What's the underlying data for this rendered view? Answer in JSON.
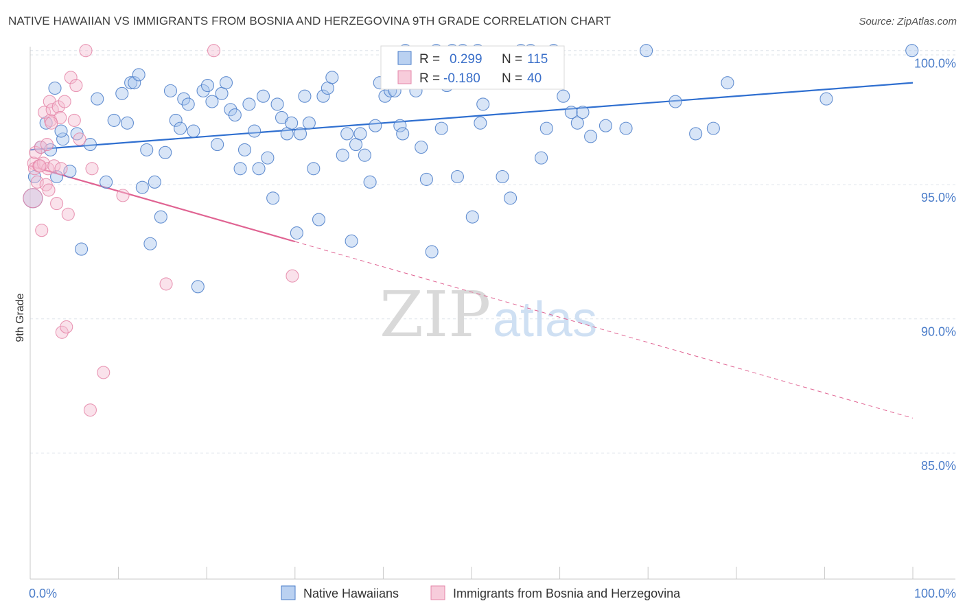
{
  "title": "NATIVE HAWAIIAN VS IMMIGRANTS FROM BOSNIA AND HERZEGOVINA 9TH GRADE CORRELATION CHART",
  "source": "Source: ZipAtlas.com",
  "watermark": {
    "zip": "ZIP",
    "atlas": "atlas"
  },
  "colors": {
    "blue": "#4a7cc9",
    "blue_fill": "#a9c6ee",
    "blue_line": "#2f6fd0",
    "pink": "#e586a8",
    "pink_fill": "#f5bfd2",
    "pink_line": "#e06392",
    "grid": "#dde3ea",
    "axis": "#c8c8c8"
  },
  "stats": {
    "blue": {
      "r_label": "R =",
      "r_value": "0.299",
      "n_label": "N =",
      "n_value": "115"
    },
    "pink": {
      "r_label": "R =",
      "r_value": "-0.180",
      "n_label": "N =",
      "n_value": "40"
    }
  },
  "chart_data": {
    "type": "scatter",
    "title": "NATIVE HAWAIIAN VS IMMIGRANTS FROM BOSNIA AND HERZEGOVINA 9TH GRADE CORRELATION CHART",
    "xlabel": "",
    "ylabel": "9th Grade",
    "xlim": [
      0,
      100
    ],
    "ylim": [
      80.3,
      100.3
    ],
    "x_tick_labels": [
      {
        "value": 0,
        "label": "0.0%"
      },
      {
        "value": 100,
        "label": "100.0%"
      }
    ],
    "x_minor_ticks": [
      0,
      10,
      20,
      30,
      40,
      50,
      60,
      70,
      80,
      90,
      100
    ],
    "y_ticks": [
      {
        "value": 100,
        "label": "100.0%"
      },
      {
        "value": 95,
        "label": "95.0%"
      },
      {
        "value": 90,
        "label": "90.0%"
      },
      {
        "value": 85,
        "label": "85.0%"
      }
    ],
    "grid": true,
    "legend_position": "bottom",
    "series": [
      {
        "name": "Native Hawaiians",
        "color": "#4a7cc9",
        "trend": {
          "x": [
            0,
            100
          ],
          "y": [
            96.3,
            98.8
          ],
          "dashed_from": null
        },
        "points": [
          [
            0.3,
            94.5
          ],
          [
            0.5,
            95.3
          ],
          [
            1.2,
            96.4
          ],
          [
            1.8,
            97.3
          ],
          [
            2.3,
            96.3
          ],
          [
            3.0,
            95.3
          ],
          [
            3.7,
            96.7
          ],
          [
            4.5,
            95.5
          ],
          [
            5.3,
            96.9
          ],
          [
            2.8,
            98.6
          ],
          [
            3.5,
            97.0
          ],
          [
            5.8,
            92.6
          ],
          [
            6.8,
            96.5
          ],
          [
            7.6,
            98.2
          ],
          [
            8.6,
            95.1
          ],
          [
            9.5,
            97.4
          ],
          [
            10.4,
            98.4
          ],
          [
            11.0,
            97.3
          ],
          [
            11.4,
            98.8
          ],
          [
            11.8,
            98.8
          ],
          [
            12.3,
            99.1
          ],
          [
            12.7,
            94.9
          ],
          [
            13.2,
            96.3
          ],
          [
            13.6,
            92.8
          ],
          [
            14.1,
            95.1
          ],
          [
            14.8,
            93.8
          ],
          [
            15.3,
            96.2
          ],
          [
            15.9,
            98.5
          ],
          [
            16.5,
            97.4
          ],
          [
            17.0,
            97.1
          ],
          [
            17.4,
            98.2
          ],
          [
            17.9,
            98.0
          ],
          [
            18.5,
            97.0
          ],
          [
            19.0,
            91.2
          ],
          [
            19.6,
            98.5
          ],
          [
            20.1,
            98.7
          ],
          [
            20.6,
            98.1
          ],
          [
            21.2,
            96.5
          ],
          [
            21.7,
            98.4
          ],
          [
            22.2,
            98.8
          ],
          [
            22.7,
            97.8
          ],
          [
            23.2,
            97.6
          ],
          [
            23.8,
            95.6
          ],
          [
            24.3,
            96.3
          ],
          [
            24.8,
            98.0
          ],
          [
            25.4,
            97.0
          ],
          [
            25.9,
            95.6
          ],
          [
            26.4,
            98.3
          ],
          [
            26.9,
            96.0
          ],
          [
            27.5,
            94.5
          ],
          [
            28.0,
            98.0
          ],
          [
            28.5,
            97.5
          ],
          [
            29.1,
            96.9
          ],
          [
            29.6,
            97.3
          ],
          [
            30.2,
            93.2
          ],
          [
            30.6,
            96.9
          ],
          [
            31.1,
            98.3
          ],
          [
            31.6,
            97.3
          ],
          [
            32.1,
            95.6
          ],
          [
            32.7,
            93.7
          ],
          [
            33.2,
            98.3
          ],
          [
            33.7,
            98.6
          ],
          [
            34.2,
            99.0
          ],
          [
            35.4,
            96.1
          ],
          [
            35.9,
            96.9
          ],
          [
            36.4,
            92.9
          ],
          [
            36.9,
            96.5
          ],
          [
            37.4,
            96.9
          ],
          [
            37.9,
            96.1
          ],
          [
            38.5,
            95.1
          ],
          [
            39.1,
            97.2
          ],
          [
            39.6,
            98.8
          ],
          [
            40.2,
            98.3
          ],
          [
            40.8,
            98.5
          ],
          [
            41.3,
            98.5
          ],
          [
            41.9,
            97.2
          ],
          [
            42.5,
            100.0
          ],
          [
            43.1,
            99.0
          ],
          [
            43.7,
            98.5
          ],
          [
            44.3,
            96.4
          ],
          [
            44.9,
            95.2
          ],
          [
            45.5,
            92.5
          ],
          [
            46.0,
            100.0
          ],
          [
            46.6,
            97.1
          ],
          [
            47.2,
            98.7
          ],
          [
            47.8,
            100.0
          ],
          [
            48.4,
            95.3
          ],
          [
            49.0,
            100.0
          ],
          [
            50.1,
            93.8
          ],
          [
            50.7,
            100.0
          ],
          [
            51.3,
            98.0
          ],
          [
            52.5,
            99.0
          ],
          [
            53.5,
            95.3
          ],
          [
            54.4,
            94.5
          ],
          [
            55.6,
            100.0
          ],
          [
            56.7,
            100.0
          ],
          [
            57.9,
            96.0
          ],
          [
            58.5,
            97.1
          ],
          [
            59.3,
            100.0
          ],
          [
            60.4,
            98.3
          ],
          [
            61.3,
            97.7
          ],
          [
            62.0,
            97.3
          ],
          [
            62.6,
            97.7
          ],
          [
            63.5,
            96.8
          ],
          [
            65.2,
            97.2
          ],
          [
            67.5,
            97.1
          ],
          [
            69.8,
            100.0
          ],
          [
            73.1,
            98.1
          ],
          [
            75.4,
            96.9
          ],
          [
            77.4,
            97.1
          ],
          [
            79.0,
            98.8
          ],
          [
            90.2,
            98.2
          ],
          [
            99.9,
            100.0
          ],
          [
            42.2,
            96.9
          ],
          [
            51.0,
            97.3
          ]
        ]
      },
      {
        "name": "Immigrants from Bosnia and Herzegovina",
        "color": "#e586a8",
        "trend": {
          "x": [
            0,
            100
          ],
          "y": [
            95.7,
            86.3
          ],
          "dashed_from": 30
        },
        "points": [
          [
            0.3,
            94.5
          ],
          [
            0.4,
            95.8
          ],
          [
            0.5,
            95.6
          ],
          [
            0.6,
            96.2
          ],
          [
            0.8,
            95.1
          ],
          [
            1.0,
            95.7
          ],
          [
            1.2,
            96.4
          ],
          [
            1.3,
            93.3
          ],
          [
            1.5,
            95.8
          ],
          [
            1.6,
            97.7
          ],
          [
            1.8,
            95.0
          ],
          [
            1.9,
            96.5
          ],
          [
            2.0,
            95.6
          ],
          [
            2.1,
            94.8
          ],
          [
            2.2,
            98.1
          ],
          [
            2.3,
            97.4
          ],
          [
            2.5,
            97.8
          ],
          [
            2.7,
            95.7
          ],
          [
            3.0,
            94.3
          ],
          [
            3.2,
            97.9
          ],
          [
            3.4,
            97.5
          ],
          [
            3.5,
            95.6
          ],
          [
            3.6,
            89.5
          ],
          [
            3.9,
            98.1
          ],
          [
            4.1,
            89.7
          ],
          [
            4.3,
            93.9
          ],
          [
            4.6,
            99.0
          ],
          [
            5.0,
            97.4
          ],
          [
            5.2,
            98.7
          ],
          [
            5.6,
            96.7
          ],
          [
            6.3,
            100.0
          ],
          [
            6.8,
            86.6
          ],
          [
            7.0,
            95.6
          ],
          [
            8.3,
            88.0
          ],
          [
            10.5,
            94.6
          ],
          [
            15.4,
            91.3
          ],
          [
            20.8,
            100.0
          ],
          [
            29.7,
            91.6
          ],
          [
            2.4,
            97.3
          ],
          [
            1.1,
            95.7
          ]
        ]
      }
    ]
  }
}
